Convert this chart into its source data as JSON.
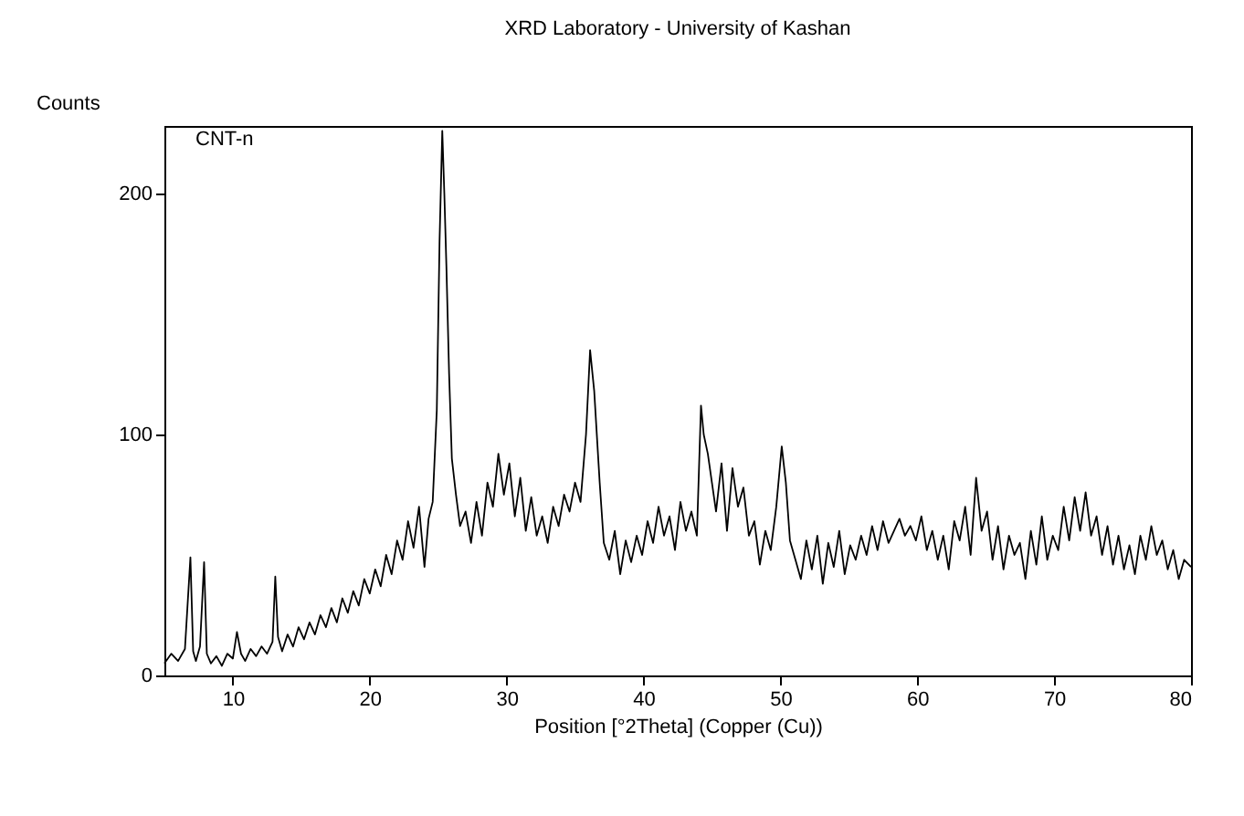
{
  "chart_data": {
    "type": "line",
    "title": "XRD Laboratory - University of Kashan",
    "xlabel": "Position [°2Theta] (Copper (Cu))",
    "ylabel": "Counts",
    "xlim": [
      5,
      80
    ],
    "ylim": [
      0,
      228
    ],
    "xticks": [
      10,
      20,
      30,
      40,
      50,
      60,
      70,
      80
    ],
    "yticks": [
      0,
      100,
      200
    ],
    "grid": false,
    "legend": "top left",
    "series": [
      {
        "name": "CNT-n",
        "color": "#000000",
        "x": [
          5,
          5.5,
          6,
          6.5,
          6.9,
          7.1,
          7.3,
          7.6,
          7.9,
          8.1,
          8.4,
          8.8,
          9.2,
          9.6,
          10,
          10.3,
          10.6,
          10.9,
          11.3,
          11.7,
          12.1,
          12.5,
          12.9,
          13.1,
          13.3,
          13.6,
          14,
          14.4,
          14.8,
          15.2,
          15.6,
          16,
          16.4,
          16.8,
          17.2,
          17.6,
          18,
          18.4,
          18.8,
          19.2,
          19.6,
          20,
          20.4,
          20.8,
          21.2,
          21.6,
          22,
          22.4,
          22.8,
          23.2,
          23.6,
          24,
          24.3,
          24.6,
          24.9,
          25.1,
          25.3,
          25.45,
          25.6,
          25.8,
          26,
          26.3,
          26.6,
          27,
          27.4,
          27.8,
          28.2,
          28.6,
          29,
          29.4,
          29.8,
          30.2,
          30.6,
          31,
          31.4,
          31.8,
          32.2,
          32.6,
          33,
          33.4,
          33.8,
          34.2,
          34.6,
          35,
          35.4,
          35.8,
          36.1,
          36.4,
          36.8,
          37.1,
          37.5,
          37.9,
          38.3,
          38.7,
          39.1,
          39.5,
          39.9,
          40.3,
          40.7,
          41.1,
          41.5,
          41.9,
          42.3,
          42.7,
          43.1,
          43.5,
          43.9,
          44.2,
          44.4,
          44.7,
          45,
          45.3,
          45.7,
          46.1,
          46.5,
          46.9,
          47.3,
          47.7,
          48.1,
          48.5,
          48.9,
          49.3,
          49.7,
          50.1,
          50.4,
          50.7,
          51.1,
          51.5,
          51.9,
          52.3,
          52.7,
          53.1,
          53.5,
          53.9,
          54.3,
          54.7,
          55.1,
          55.5,
          55.9,
          56.3,
          56.7,
          57.1,
          57.5,
          57.9,
          58.3,
          58.7,
          59.1,
          59.5,
          59.9,
          60.3,
          60.7,
          61.1,
          61.5,
          61.9,
          62.3,
          62.7,
          63.1,
          63.5,
          63.9,
          64.3,
          64.7,
          65.1,
          65.5,
          65.9,
          66.3,
          66.7,
          67.1,
          67.5,
          67.9,
          68.3,
          68.7,
          69.1,
          69.5,
          69.9,
          70.3,
          70.7,
          71.1,
          71.5,
          71.9,
          72.3,
          72.7,
          73.1,
          73.5,
          73.9,
          74.3,
          74.7,
          75.1,
          75.5,
          75.9,
          76.3,
          76.7,
          77.1,
          77.5,
          77.9,
          78.3,
          78.7,
          79.1,
          79.5,
          80
        ],
        "values": [
          5,
          9,
          6,
          11,
          49,
          10,
          6,
          12,
          47,
          9,
          5,
          8,
          4,
          9,
          7,
          18,
          9,
          6,
          11,
          8,
          12,
          9,
          14,
          41,
          16,
          10,
          17,
          12,
          20,
          15,
          22,
          17,
          25,
          20,
          28,
          22,
          32,
          26,
          35,
          29,
          40,
          34,
          44,
          37,
          50,
          42,
          56,
          48,
          64,
          53,
          70,
          45,
          65,
          72,
          110,
          180,
          226,
          200,
          170,
          125,
          90,
          75,
          62,
          68,
          55,
          72,
          58,
          80,
          70,
          92,
          75,
          88,
          66,
          82,
          60,
          74,
          58,
          66,
          55,
          70,
          62,
          75,
          68,
          80,
          72,
          100,
          135,
          118,
          80,
          55,
          48,
          60,
          42,
          56,
          47,
          58,
          50,
          64,
          55,
          70,
          58,
          66,
          52,
          72,
          60,
          68,
          58,
          112,
          100,
          92,
          80,
          68,
          88,
          60,
          86,
          70,
          78,
          58,
          64,
          46,
          60,
          52,
          70,
          95,
          80,
          56,
          48,
          40,
          56,
          44,
          58,
          38,
          55,
          45,
          60,
          42,
          54,
          48,
          58,
          50,
          62,
          52,
          64,
          55,
          60,
          65,
          58,
          62,
          56,
          66,
          52,
          60,
          48,
          58,
          44,
          64,
          56,
          70,
          50,
          82,
          60,
          68,
          48,
          62,
          44,
          58,
          50,
          55,
          40,
          60,
          46,
          66,
          48,
          58,
          52,
          70,
          56,
          74,
          60,
          76,
          58,
          66,
          50,
          62,
          46,
          58,
          44,
          54,
          42,
          58,
          48,
          62,
          50,
          56,
          44,
          52,
          40,
          48,
          45
        ]
      }
    ]
  }
}
